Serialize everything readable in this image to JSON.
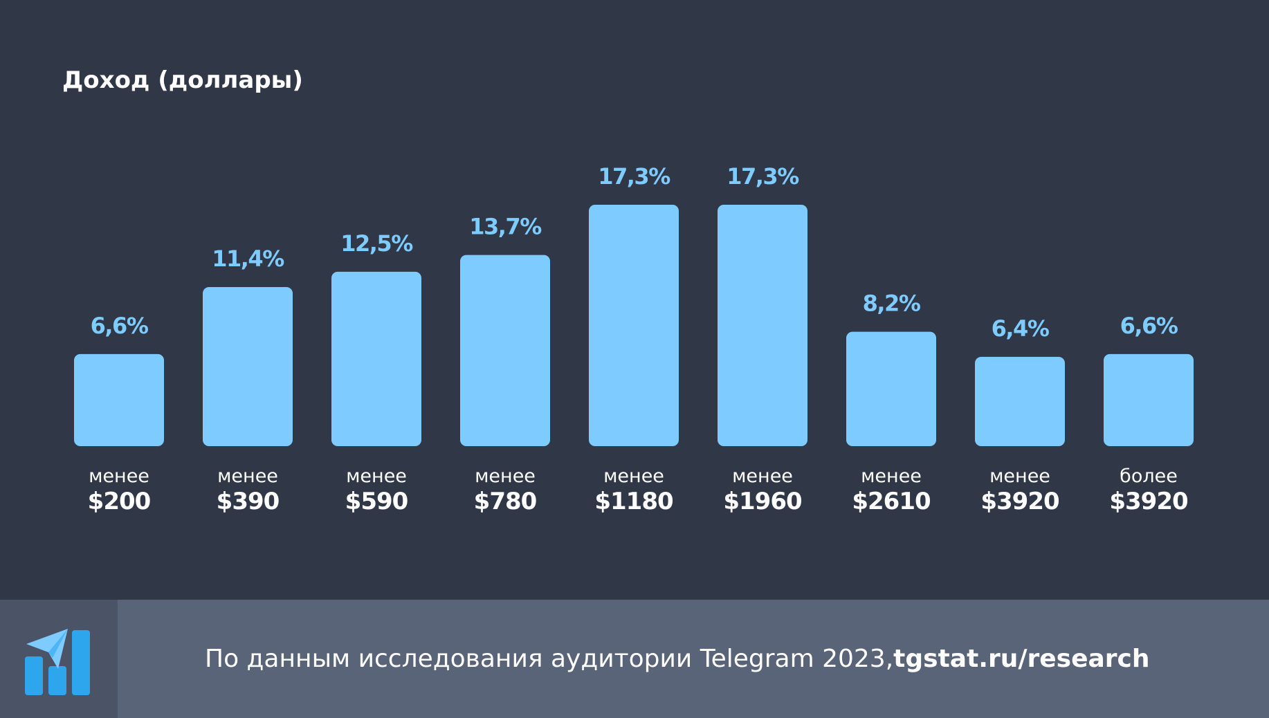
{
  "header": {
    "title": "Доход (доллары)"
  },
  "chart_data": {
    "type": "bar",
    "title": "Доход (доллары)",
    "categories": [
      {
        "prefix": "менее",
        "amount": "$200"
      },
      {
        "prefix": "менее",
        "amount": "$390"
      },
      {
        "prefix": "менее",
        "amount": "$590"
      },
      {
        "prefix": "менее",
        "amount": "$780"
      },
      {
        "prefix": "менее",
        "amount": "$1180"
      },
      {
        "prefix": "менее",
        "amount": "$1960"
      },
      {
        "prefix": "менее",
        "amount": "$2610"
      },
      {
        "prefix": "менее",
        "amount": "$3920"
      },
      {
        "prefix": "более",
        "amount": "$3920"
      }
    ],
    "values": [
      6.6,
      11.4,
      12.5,
      13.7,
      17.3,
      17.3,
      8.2,
      6.4,
      6.6
    ],
    "value_labels": [
      "6,6%",
      "11,4%",
      "12,5%",
      "13,7%",
      "17,3%",
      "17,3%",
      "8,2%",
      "6,4%",
      "6,6%"
    ],
    "ylim": [
      0,
      17.3
    ],
    "grid": false,
    "colors": {
      "bar": "#7ecbff",
      "value_label": "#7ecbff",
      "category_label": "#ffffff"
    }
  },
  "footer": {
    "source_text": "По данным исследования аудитории Telegram 2023, ",
    "source_link": "tgstat.ru/research",
    "logo_icon": "tgstat-logo-icon"
  },
  "colors": {
    "background": "#303746",
    "footer_background": "#5a6478",
    "logo_background": "#4a5466"
  }
}
